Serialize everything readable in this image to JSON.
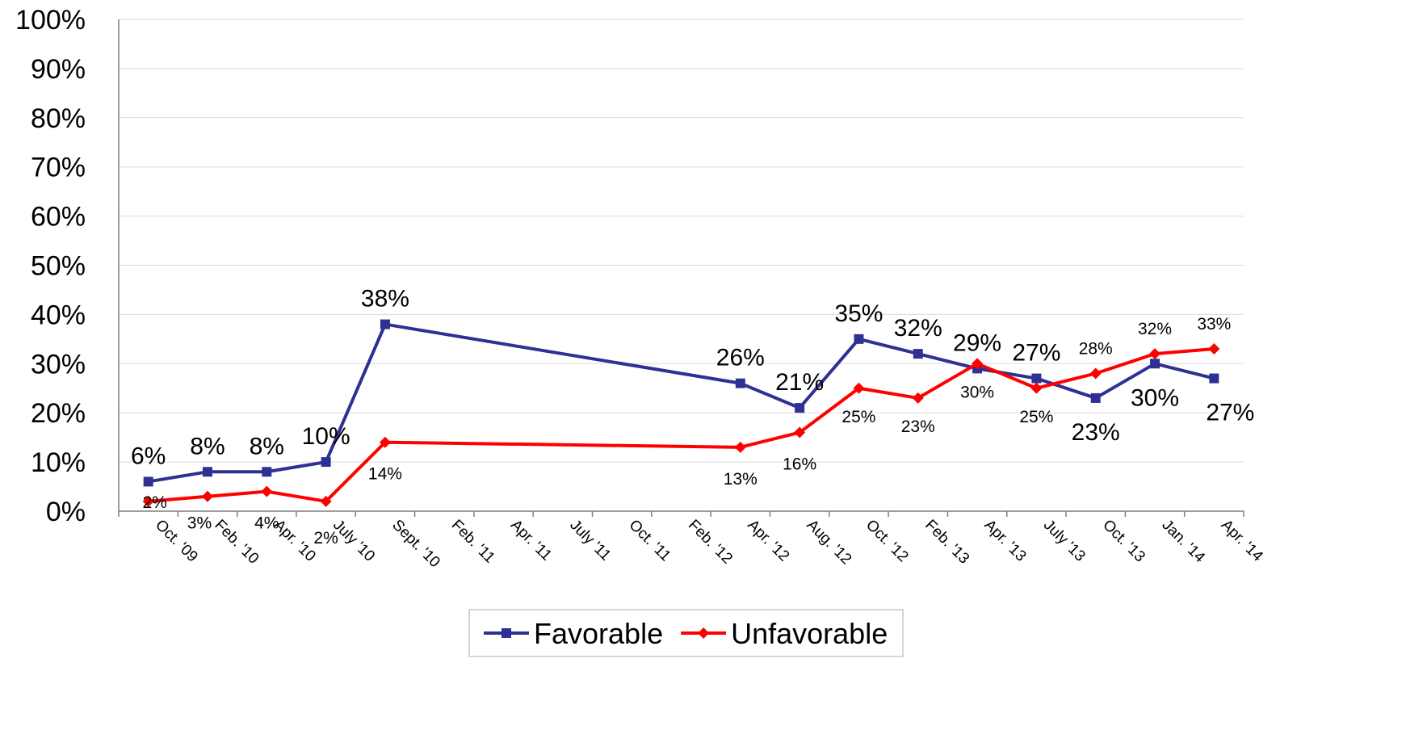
{
  "chart_data": {
    "type": "line",
    "categories": [
      "Oct. '09",
      "Feb. '10",
      "Apr. '10",
      "July '10",
      "Sept. '10",
      "Feb. '11",
      "Apr. '11",
      "July '11",
      "Oct. '11",
      "Feb. '12",
      "Apr. '12",
      "Aug. '12",
      "Oct. '12",
      "Feb. '13",
      "Apr. '13",
      "July '13",
      "Oct. '13",
      "Jan. '14",
      "Apr. '14"
    ],
    "ylim": [
      0,
      100
    ],
    "yticks": [
      "0%",
      "10%",
      "20%",
      "30%",
      "40%",
      "50%",
      "60%",
      "70%",
      "80%",
      "90%",
      "100%"
    ],
    "grid": true,
    "legend_position": "bottom",
    "series": [
      {
        "name": "Favorable",
        "color": "#2E3192",
        "marker": "square",
        "values": [
          6,
          8,
          8,
          10,
          38,
          null,
          null,
          null,
          null,
          null,
          26,
          21,
          35,
          32,
          29,
          27,
          23,
          30,
          27
        ],
        "labels": [
          "6%",
          "8%",
          "8%",
          "10%",
          "38%",
          "",
          "",
          "",
          "",
          "",
          "26%",
          "21%",
          "35%",
          "32%",
          "29%",
          "27%",
          "23%",
          "30%",
          "27%"
        ]
      },
      {
        "name": "Unfavorable",
        "color": "#FF0000",
        "marker": "diamond",
        "values": [
          2,
          3,
          4,
          2,
          14,
          null,
          null,
          null,
          null,
          null,
          13,
          16,
          25,
          23,
          30,
          25,
          28,
          32,
          33
        ],
        "labels": [
          "2%",
          "3%",
          "4%",
          "2%",
          "14%",
          "",
          "",
          "",
          "",
          "",
          "13%",
          "16%",
          "25%",
          "23%",
          "30%",
          "25%",
          "28%",
          "32%",
          "33%"
        ]
      }
    ]
  }
}
